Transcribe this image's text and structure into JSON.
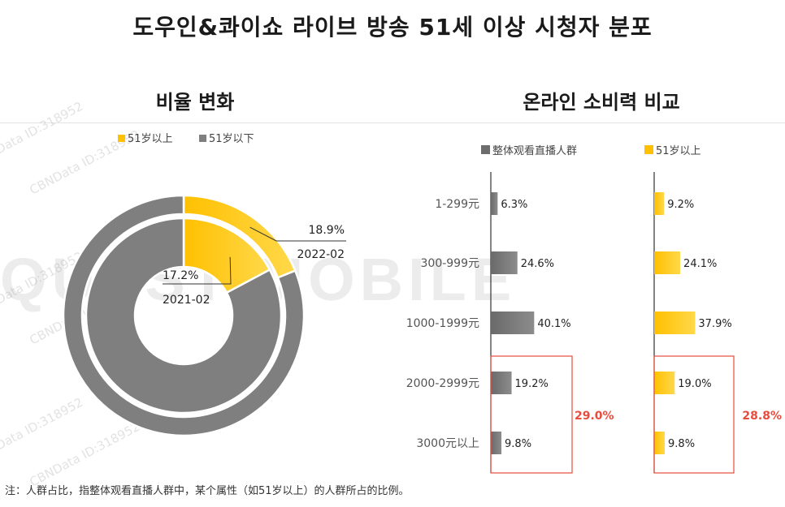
{
  "title": "도우인&콰이쇼 라이브 방송 51세 이상 시청자 분포",
  "left_title": "비율 변화",
  "right_title": "온라인 소비력 비교",
  "note": "注：人群占比，指整体观看直播人群中，某个属性（如51岁以上）的人群所占的比例。",
  "watermark_brand": "QUEST MOBILE",
  "watermark_tag": "CBNData ID:318952",
  "colors": {
    "gold": "#ffc000",
    "gold_light": "#ffd84a",
    "gray": "#7f7f7f",
    "gray_dark": "#6d6d6d",
    "highlight": "#e74c3c"
  },
  "chart_data": [
    {
      "type": "pie",
      "subtype": "donut-nested",
      "legend": [
        "51岁以上",
        "51岁以下"
      ],
      "legend_position": "top",
      "rings": [
        {
          "name": "2022-02",
          "ring": "outer",
          "values": [
            18.9,
            81.1
          ],
          "label": "18.9%"
        },
        {
          "name": "2021-02",
          "ring": "inner",
          "values": [
            17.2,
            82.8
          ],
          "label": "17.2%"
        }
      ]
    },
    {
      "type": "bar",
      "orientation": "horizontal",
      "categories": [
        "1-299元",
        "300-999元",
        "1000-1999元",
        "2000-2999元",
        "3000元以上"
      ],
      "series": [
        {
          "name": "整体观看直播人群",
          "values": [
            6.3,
            24.6,
            40.1,
            19.2,
            9.8
          ],
          "labels": [
            "6.3%",
            "24.6%",
            "40.1%",
            "19.2%",
            "9.8%"
          ]
        },
        {
          "name": "51岁以上",
          "values": [
            9.2,
            24.1,
            37.9,
            19.0,
            9.8
          ],
          "labels": [
            "9.2%",
            "24.1%",
            "37.9%",
            "19.0%",
            "9.8%"
          ]
        }
      ],
      "xlim": [
        0,
        100
      ],
      "grid": false,
      "annotations": [
        {
          "series": "整体观看直播人群",
          "categories": [
            "2000-2999元",
            "3000元以上"
          ],
          "text": "29.0%"
        },
        {
          "series": "51岁以上",
          "categories": [
            "2000-2999元",
            "3000元以上"
          ],
          "text": "28.8%"
        }
      ]
    }
  ]
}
